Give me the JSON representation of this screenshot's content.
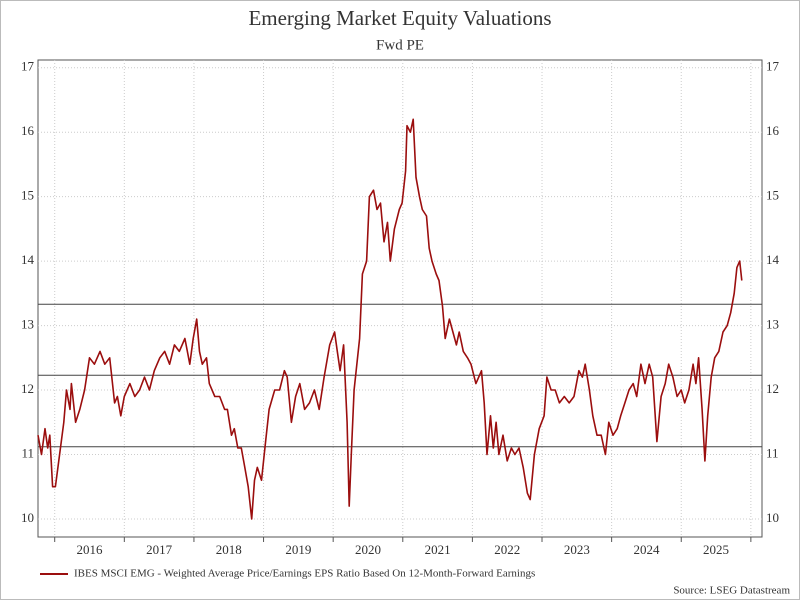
{
  "chart_data": {
    "type": "line",
    "title": "Emerging Market Equity Valuations",
    "subtitle": "Fwd PE",
    "source": "Source: LSEG Datastream",
    "xlim": [
      2015.76,
      2026.16
    ],
    "ylim": [
      9.72,
      17.12
    ],
    "y2lim": [
      9.72,
      17.12
    ],
    "yticks": [
      10,
      11,
      12,
      13,
      14,
      15,
      16,
      17
    ],
    "y2ticks": [
      10,
      11,
      12,
      13,
      14,
      15,
      16,
      17
    ],
    "xticks": [
      {
        "value": 2016.5,
        "label": "2016"
      },
      {
        "value": 2017.5,
        "label": "2017"
      },
      {
        "value": 2018.5,
        "label": "2018"
      },
      {
        "value": 2019.5,
        "label": "2019"
      },
      {
        "value": 2020.5,
        "label": "2020"
      },
      {
        "value": 2021.5,
        "label": "2021"
      },
      {
        "value": 2022.5,
        "label": "2022"
      },
      {
        "value": 2023.5,
        "label": "2023"
      },
      {
        "value": 2024.5,
        "label": "2024"
      },
      {
        "value": 2025.5,
        "label": "2025"
      }
    ],
    "x_gridlines": [
      2016,
      2017,
      2018,
      2019,
      2020,
      2021,
      2022,
      2023,
      2024,
      2025,
      2026
    ],
    "grid": true,
    "reference_lines": [
      13.33,
      12.23,
      11.12
    ],
    "legend": "bottom-left",
    "series": [
      {
        "name": "IBES MSCI EMG - Weighted Average Price/Earnings EPS Ratio Based On 12-Month-Forward Earnings",
        "color": "#9b0e0e",
        "x": [
          2015.76,
          2015.81,
          2015.86,
          2015.9,
          2015.93,
          2015.97,
          2016.01,
          2016.07,
          2016.13,
          2016.17,
          2016.22,
          2016.24,
          2016.3,
          2016.36,
          2016.43,
          2016.5,
          2016.57,
          2016.65,
          2016.72,
          2016.79,
          2016.86,
          2016.9,
          2016.95,
          2017.0,
          2017.08,
          2017.15,
          2017.22,
          2017.29,
          2017.36,
          2017.43,
          2017.51,
          2017.58,
          2017.65,
          2017.72,
          2017.79,
          2017.87,
          2017.94,
          2017.99,
          2018.04,
          2018.08,
          2018.12,
          2018.18,
          2018.22,
          2018.3,
          2018.37,
          2018.44,
          2018.48,
          2018.54,
          2018.58,
          2018.63,
          2018.68,
          2018.73,
          2018.78,
          2018.83,
          2018.87,
          2018.91,
          2018.97,
          2019.03,
          2019.08,
          2019.16,
          2019.23,
          2019.3,
          2019.34,
          2019.4,
          2019.46,
          2019.52,
          2019.59,
          2019.66,
          2019.73,
          2019.8,
          2019.87,
          2019.95,
          2020.02,
          2020.06,
          2020.1,
          2020.15,
          2020.2,
          2020.23,
          2020.26,
          2020.3,
          2020.38,
          2020.42,
          2020.48,
          2020.52,
          2020.58,
          2020.63,
          2020.68,
          2020.73,
          2020.78,
          2020.82,
          2020.88,
          2020.95,
          2020.99,
          2021.04,
          2021.06,
          2021.11,
          2021.15,
          2021.19,
          2021.24,
          2021.28,
          2021.34,
          2021.38,
          2021.42,
          2021.48,
          2021.52,
          2021.57,
          2021.61,
          2021.67,
          2021.72,
          2021.77,
          2021.81,
          2021.87,
          2021.93,
          2021.98,
          2022.05,
          2022.13,
          2022.17,
          2022.21,
          2022.26,
          2022.3,
          2022.34,
          2022.38,
          2022.44,
          2022.5,
          2022.56,
          2022.61,
          2022.67,
          2022.73,
          2022.79,
          2022.83,
          2022.89,
          2022.96,
          2023.03,
          2023.07,
          2023.13,
          2023.19,
          2023.25,
          2023.32,
          2023.39,
          2023.46,
          2023.53,
          2023.58,
          2023.62,
          2023.68,
          2023.73,
          2023.79,
          2023.85,
          2023.91,
          2023.96,
          2024.02,
          2024.08,
          2024.13,
          2024.19,
          2024.25,
          2024.31,
          2024.36,
          2024.42,
          2024.48,
          2024.54,
          2024.59,
          2024.65,
          2024.71,
          2024.77,
          2024.82,
          2024.88,
          2024.94,
          2025.0,
          2025.05,
          2025.11,
          2025.17,
          2025.21,
          2025.25,
          2025.3,
          2025.34,
          2025.38,
          2025.43,
          2025.48,
          2025.54,
          2025.6,
          2025.66,
          2025.71,
          2025.76,
          2025.8,
          2025.84,
          2025.87
        ],
        "values": [
          11.3,
          11.0,
          11.4,
          11.1,
          11.3,
          10.5,
          10.5,
          11.0,
          11.5,
          12.0,
          11.7,
          12.1,
          11.5,
          11.7,
          12.0,
          12.5,
          12.4,
          12.6,
          12.4,
          12.5,
          11.8,
          11.9,
          11.6,
          11.9,
          12.1,
          11.9,
          12.0,
          12.2,
          12.0,
          12.3,
          12.5,
          12.6,
          12.4,
          12.7,
          12.6,
          12.8,
          12.4,
          12.8,
          13.1,
          12.6,
          12.4,
          12.5,
          12.1,
          11.9,
          11.9,
          11.7,
          11.7,
          11.3,
          11.4,
          11.1,
          11.1,
          10.8,
          10.5,
          10.0,
          10.6,
          10.8,
          10.6,
          11.2,
          11.7,
          12.0,
          12.0,
          12.3,
          12.2,
          11.5,
          11.9,
          12.1,
          11.7,
          11.8,
          12.0,
          11.7,
          12.2,
          12.7,
          12.9,
          12.6,
          12.3,
          12.7,
          11.5,
          10.2,
          11.0,
          12.0,
          12.8,
          13.8,
          14.0,
          15.0,
          15.1,
          14.8,
          14.9,
          14.3,
          14.6,
          14.0,
          14.5,
          14.8,
          14.9,
          15.4,
          16.1,
          16.0,
          16.2,
          15.3,
          15.0,
          14.8,
          14.7,
          14.2,
          14.0,
          13.8,
          13.7,
          13.3,
          12.8,
          13.1,
          12.9,
          12.7,
          12.9,
          12.6,
          12.5,
          12.4,
          12.1,
          12.3,
          11.8,
          11.0,
          11.6,
          11.1,
          11.5,
          11.0,
          11.3,
          10.9,
          11.1,
          11.0,
          11.1,
          10.8,
          10.4,
          10.3,
          11.0,
          11.4,
          11.6,
          12.2,
          12.0,
          12.0,
          11.8,
          11.9,
          11.8,
          11.9,
          12.3,
          12.2,
          12.4,
          12.0,
          11.6,
          11.3,
          11.3,
          11.0,
          11.5,
          11.3,
          11.4,
          11.6,
          11.8,
          12.0,
          12.1,
          11.9,
          12.4,
          12.1,
          12.4,
          12.2,
          11.2,
          11.9,
          12.1,
          12.4,
          12.2,
          11.9,
          12.0,
          11.8,
          12.0,
          12.4,
          12.1,
          12.5,
          11.7,
          10.9,
          11.6,
          12.2,
          12.5,
          12.6,
          12.9,
          13.0,
          13.2,
          13.5,
          13.9,
          14.0,
          13.7
        ]
      }
    ]
  }
}
